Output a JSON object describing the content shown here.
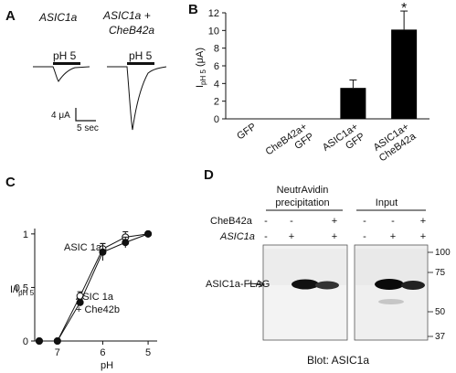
{
  "panel_labels": {
    "a": "A",
    "b": "B",
    "c": "C",
    "d": "D"
  },
  "panel_a": {
    "trace1_title": "ASIC1a",
    "trace2_title_line1": "ASIC1a +",
    "trace2_title_line2": "CheB42a",
    "ph_label_1": "pH 5",
    "ph_label_2": "pH 5",
    "scale_current": "4 μA",
    "scale_time": "5 sec"
  },
  "panel_d": {
    "header_left_line1": "NeutrAvidin",
    "header_left_line2": "precipitation",
    "header_right": "Input",
    "row1_label": "CheB42a",
    "row2_label": "ASIC1a",
    "row1_signs": [
      "-",
      "-",
      "+",
      "-",
      "-",
      "+"
    ],
    "row2_signs": [
      "-",
      "+",
      "+",
      "-",
      "+",
      "+"
    ],
    "band_label": "ASIC1a-FLAG",
    "mw_markers": [
      "100",
      "75",
      "50",
      "37"
    ],
    "blot_caption": "Blot: ASIC1a"
  },
  "chart_data": [
    {
      "type": "bar",
      "panel": "B",
      "title": "",
      "ylabel": "I pH 5 (μA)",
      "ylabel_main": "I",
      "ylabel_sub": "pH 5",
      "ylabel_unit": " (μA)",
      "ylim": [
        0,
        12
      ],
      "yticks": [
        "0",
        "2",
        "4",
        "6",
        "8",
        "10",
        "12"
      ],
      "categories": [
        "GFP",
        "CheB42a+ GFP",
        "ASIC1a+ GFP",
        "ASIC1a+ CheB42a"
      ],
      "category_lines": [
        [
          "GFP"
        ],
        [
          "CheB42a+",
          "GFP"
        ],
        [
          "ASIC1a+",
          "GFP"
        ],
        [
          "ASIC1a+",
          "CheB42a"
        ]
      ],
      "values": [
        0,
        0,
        3.5,
        10.1
      ],
      "errors": [
        0,
        0,
        0.9,
        2.1
      ],
      "significance": [
        "",
        "",
        "",
        "*"
      ],
      "bar_color": "#000000"
    },
    {
      "type": "line",
      "panel": "C",
      "title": "",
      "xlabel": "pH",
      "ylabel": "I/I pH 5",
      "ylabel_main": "I/I",
      "ylabel_sub": "pH 5",
      "x_reversed": true,
      "xlim": [
        7.5,
        4.8
      ],
      "ylim": [
        0,
        1.05
      ],
      "xticks": [
        "7",
        "6",
        "5"
      ],
      "yticks": [
        "0",
        "0.5",
        "1"
      ],
      "series": [
        {
          "name": "ASIC 1a",
          "marker": "open-circle",
          "x": [
            7.4,
            7.0,
            6.5,
            6.0,
            5.5,
            5.0
          ],
          "y": [
            0.0,
            0.0,
            0.42,
            0.86,
            0.97,
            1.0
          ],
          "err": [
            0,
            0,
            0.04,
            0.05,
            0.05,
            0
          ]
        },
        {
          "name": "ASIC 1a + Che42b",
          "name_line1": "ASIC 1a",
          "name_line2": "+ Che42b",
          "marker": "filled-circle",
          "x": [
            7.4,
            7.0,
            6.5,
            6.0,
            5.5,
            5.0
          ],
          "y": [
            0.0,
            0.0,
            0.36,
            0.83,
            0.92,
            1.0
          ],
          "err": [
            0,
            0,
            0.03,
            0.08,
            0.05,
            0
          ]
        }
      ]
    }
  ]
}
